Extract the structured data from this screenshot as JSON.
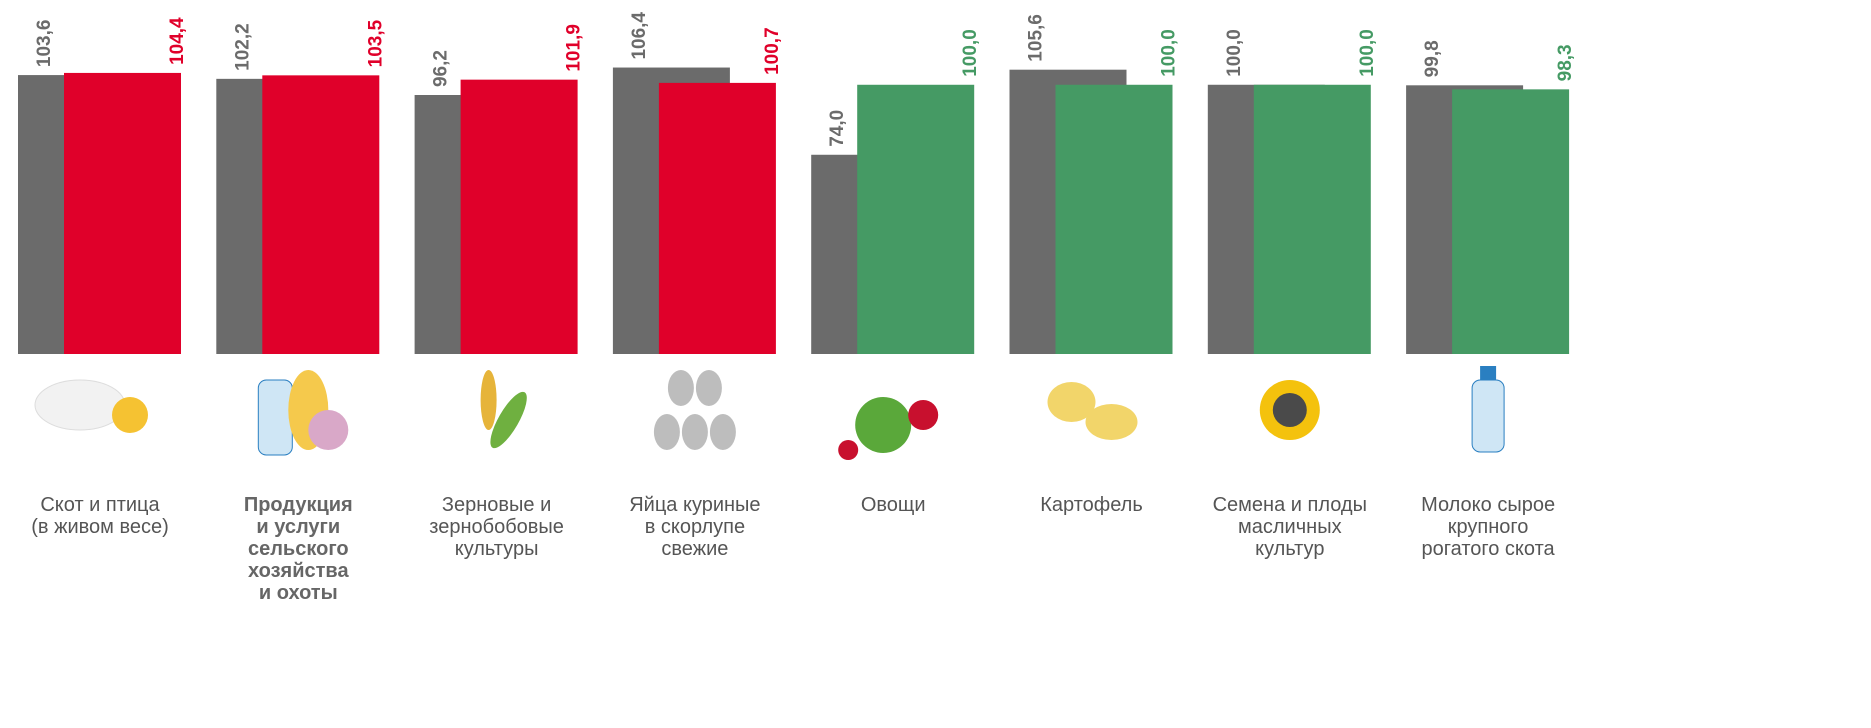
{
  "chart_data": {
    "type": "bar",
    "categories": [
      "Скот и птица\n(в  живом весе)",
      "Продукция\nи услуги\nсельского\nхозяйства\nи охоты",
      "Зерновые и\nзернобобовые\nкультуры",
      "Яйца куриные\nв скорлупе\nсвежие",
      "Овощи",
      "Картофель",
      "Семена и плоды\nмасличных\nкультур",
      "Молоко сырое\nкрупного\nрогатого скота"
    ],
    "bold_category_index": 1,
    "series": [
      {
        "color": "#6b6b6b",
        "values": [
          103.6,
          102.2,
          96.2,
          106.4,
          74.0,
          105.6,
          100.0,
          99.8
        ],
        "value_labels": [
          "103,6",
          "102,2",
          "96,2",
          "106,4",
          "74,0",
          "105,6",
          "100,0",
          "99,8"
        ]
      },
      {
        "colors": [
          "#e0002a",
          "#e0002a",
          "#e0002a",
          "#e0002a",
          "#459a64",
          "#459a64",
          "#459a64",
          "#459a64"
        ],
        "values": [
          104.4,
          103.5,
          101.9,
          100.7,
          100.0,
          100.0,
          100.0,
          98.3
        ],
        "value_labels": [
          "104,4",
          "103,5",
          "101,9",
          "100,7",
          "100,0",
          "100,0",
          "100,0",
          "98,3"
        ]
      }
    ],
    "ylim": [
      0,
      130
    ]
  }
}
